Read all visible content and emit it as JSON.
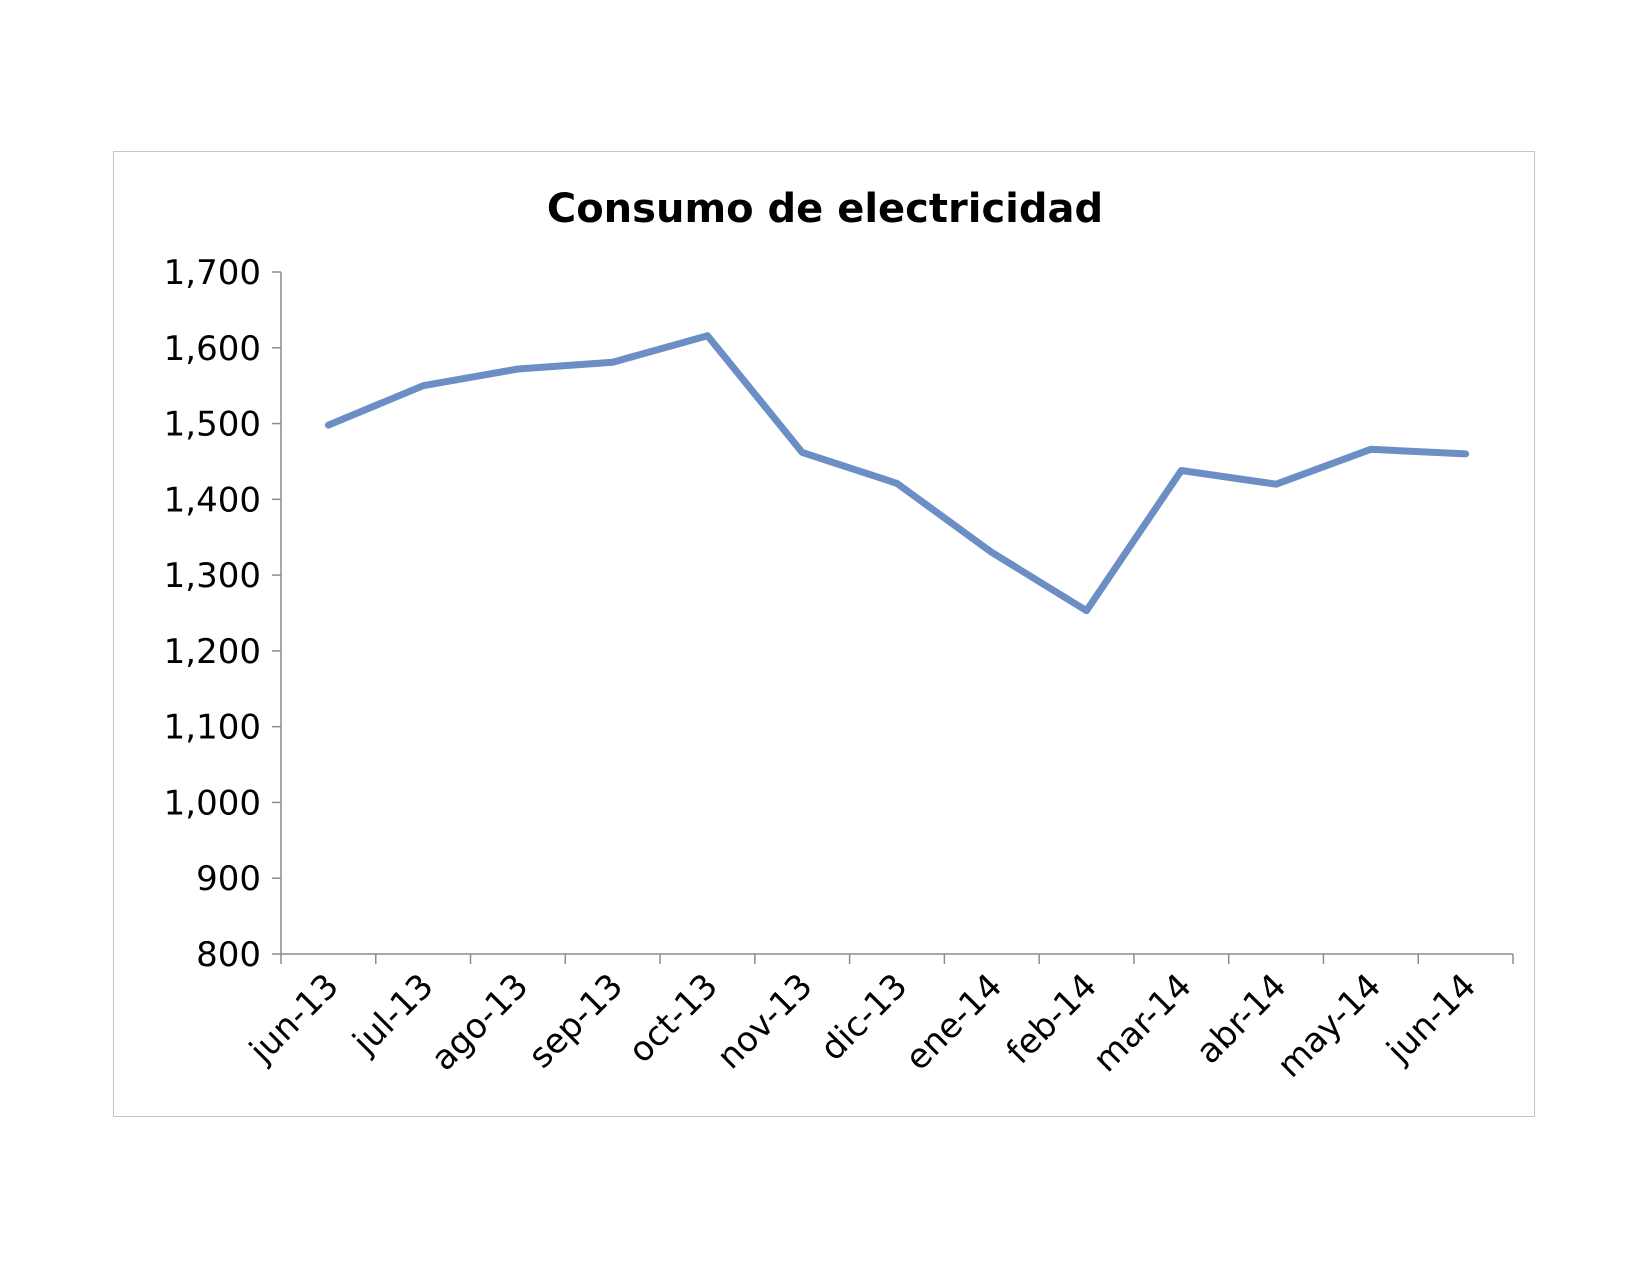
{
  "chart_data": {
    "type": "line",
    "title": "Consumo de electricidad",
    "xlabel": "",
    "ylabel": "",
    "categories": [
      "jun-13",
      "jul-13",
      "ago-13",
      "sep-13",
      "oct-13",
      "nov-13",
      "dic-13",
      "ene-14",
      "feb-14",
      "mar-14",
      "abr-14",
      "may-14",
      "jun-14"
    ],
    "series": [
      {
        "values": [
          1498,
          1550,
          1572,
          1581,
          1616,
          1462,
          1421,
          1330,
          1253,
          1438,
          1420,
          1466,
          1460
        ],
        "color": "#6b8fc4"
      }
    ],
    "ylim": [
      800,
      1700
    ],
    "yticks": [
      800,
      900,
      1000,
      1100,
      1200,
      1300,
      1400,
      1500,
      1600,
      1700
    ],
    "ytick_labels": [
      "800",
      "900",
      "1,000",
      "1,100",
      "1,200",
      "1,300",
      "1,400",
      "1,500",
      "1,600",
      "1,700"
    ],
    "grid": false,
    "legend": "none"
  }
}
